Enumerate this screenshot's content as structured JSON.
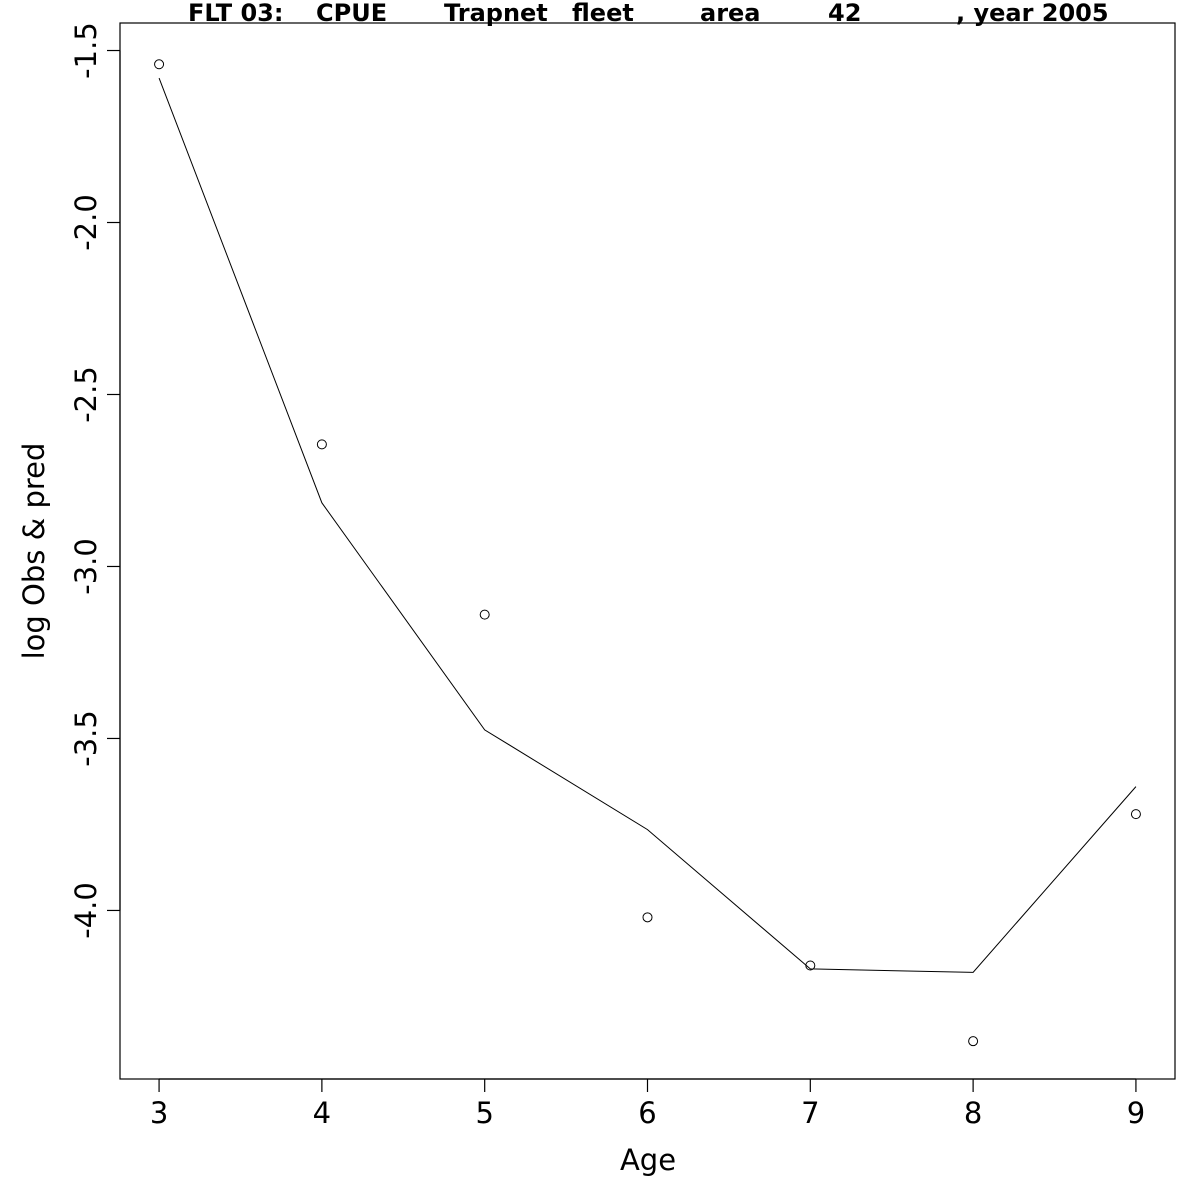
{
  "chart_data": {
    "type": "scatter",
    "title_segments": [
      "FLT 03:",
      "CPUE",
      "Trapnet",
      "fleet",
      "area",
      "42",
      ", year 2005"
    ],
    "xlabel": "Age",
    "ylabel": "log Obs & pred",
    "xlim": [
      2.76,
      9.24
    ],
    "ylim": [
      -4.49,
      -1.42
    ],
    "x_ticks": [
      3,
      4,
      5,
      6,
      7,
      8,
      9
    ],
    "x_tick_labels": [
      "3",
      "4",
      "5",
      "6",
      "7",
      "8",
      "9"
    ],
    "y_ticks": [
      -4.0,
      -3.5,
      -3.0,
      -2.5,
      -2.0,
      -1.5
    ],
    "y_tick_labels": [
      "-4.0",
      "-3.5",
      "-3.0",
      "-2.5",
      "-2.0",
      "-1.5"
    ],
    "grid": false,
    "series": [
      {
        "type": "scatter",
        "x": [
          3,
          4,
          5,
          6,
          7,
          8,
          9
        ],
        "y": [
          -1.54,
          -2.645,
          -3.14,
          -4.02,
          -4.16,
          -4.38,
          -3.72
        ]
      },
      {
        "type": "line",
        "x": [
          3,
          4,
          5,
          6,
          7,
          8,
          9
        ],
        "y": [
          -1.58,
          -2.815,
          -3.475,
          -3.765,
          -4.17,
          -4.18,
          -3.64
        ]
      }
    ]
  }
}
